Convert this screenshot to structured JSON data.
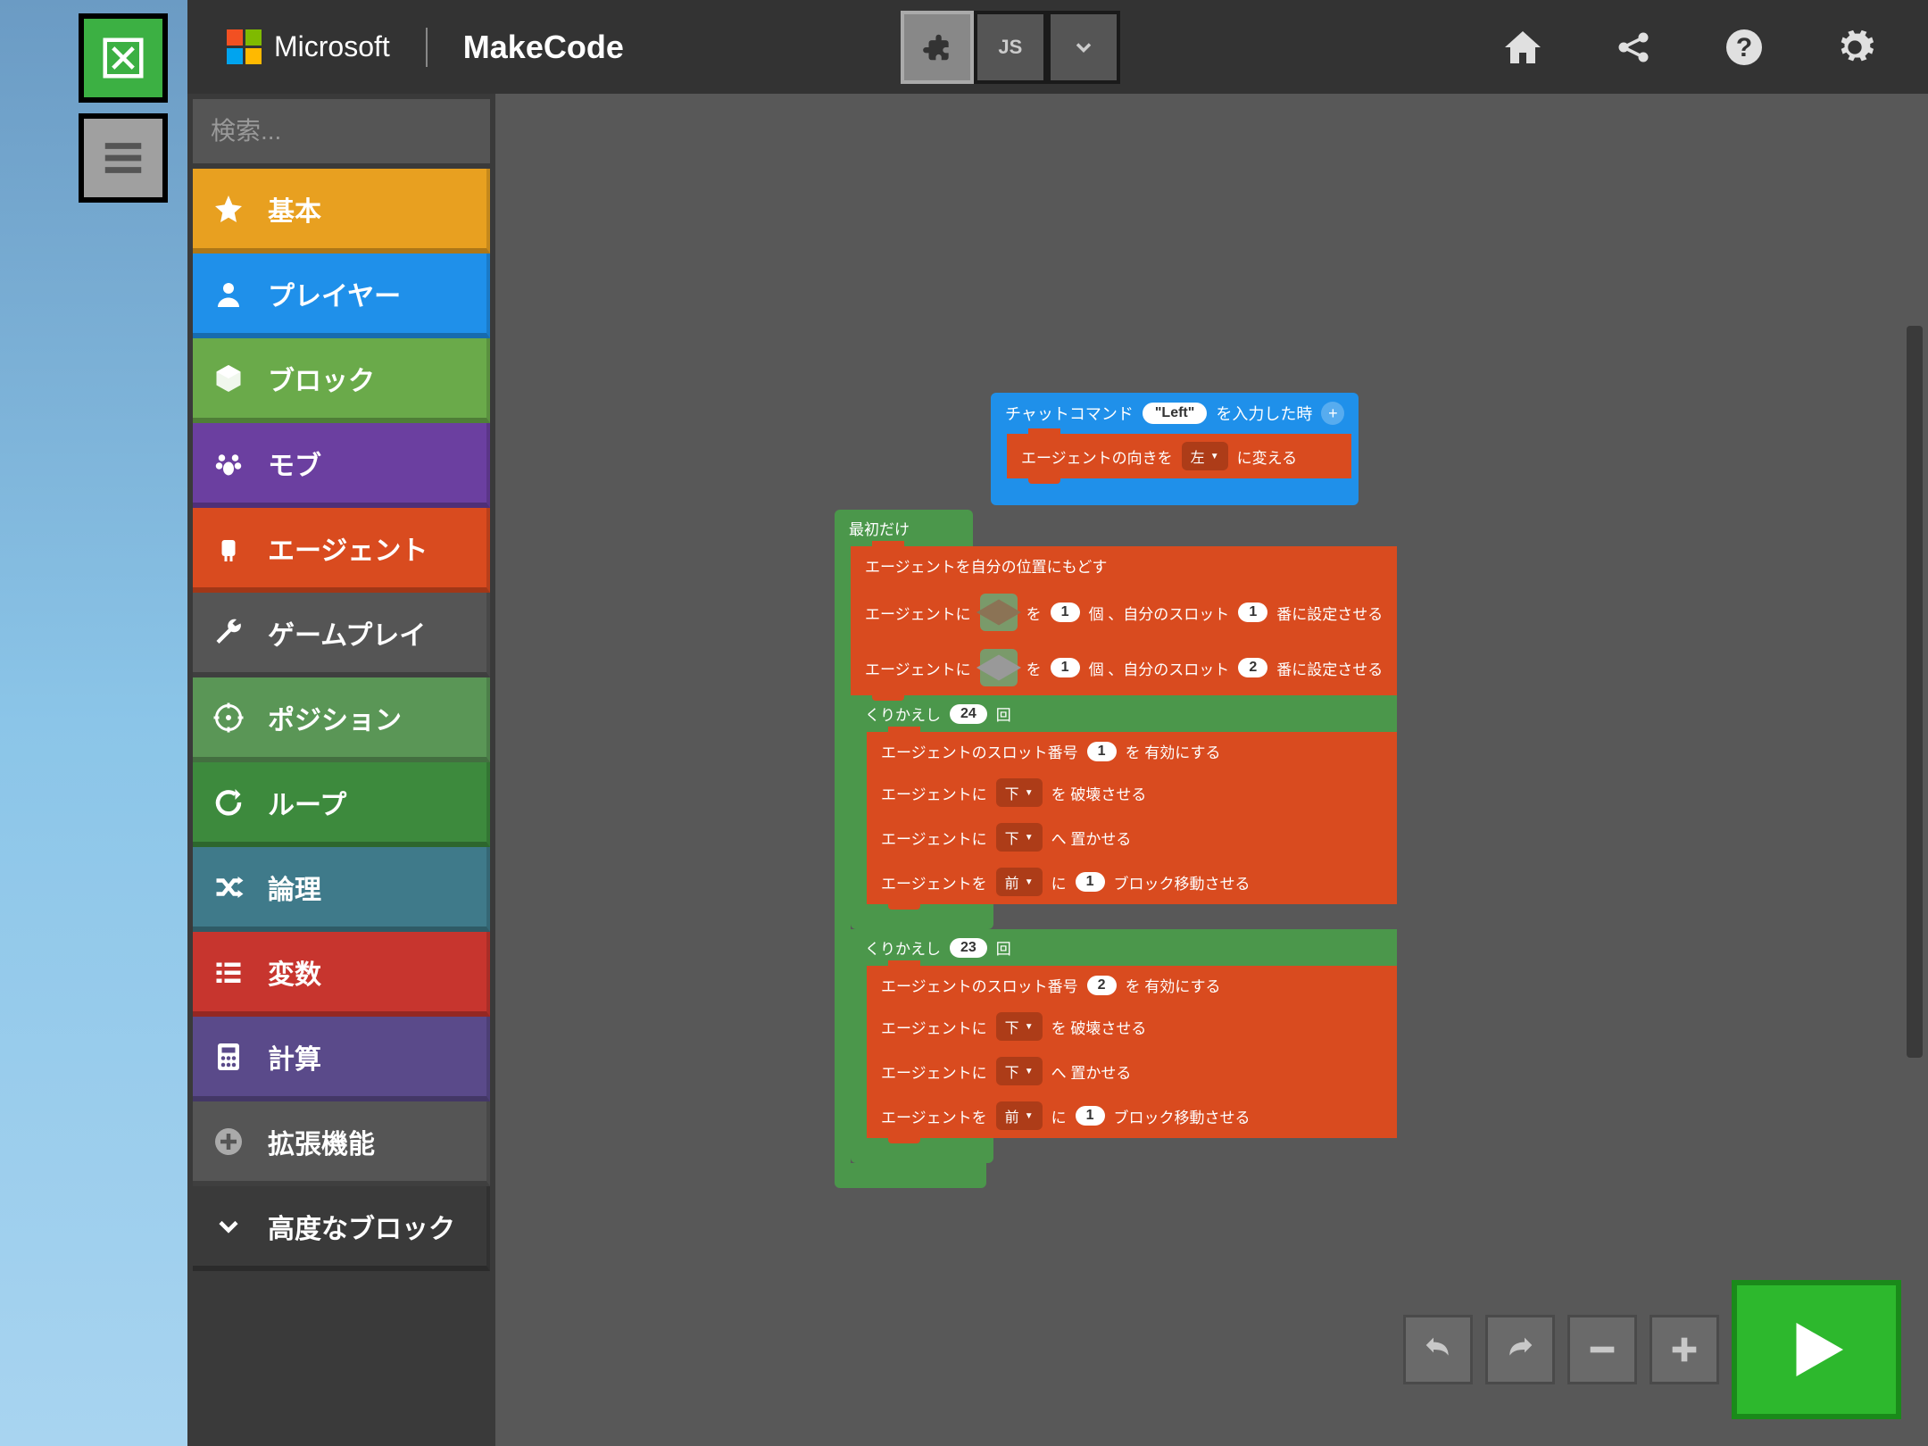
{
  "header": {
    "microsoft": "Microsoft",
    "makecode": "MakeCode",
    "js_label": "JS",
    "ms_colors": [
      "#f25022",
      "#7fba00",
      "#00a4ef",
      "#ffb900"
    ]
  },
  "search": {
    "placeholder": "検索..."
  },
  "categories": [
    {
      "label": "基本",
      "color": "#e8a020",
      "icon": "star"
    },
    {
      "label": "プレイヤー",
      "color": "#1f90ea",
      "icon": "user"
    },
    {
      "label": "ブロック",
      "color": "#6aaa4a",
      "icon": "cube"
    },
    {
      "label": "モブ",
      "color": "#6b3fa0",
      "icon": "paw"
    },
    {
      "label": "エージェント",
      "color": "#d94b1f",
      "icon": "robot"
    },
    {
      "label": "ゲームプレイ",
      "color": "#555555",
      "icon": "wrench"
    },
    {
      "label": "ポジション",
      "color": "#5a9656",
      "icon": "target"
    },
    {
      "label": "ループ",
      "color": "#3d8a3d",
      "icon": "loop"
    },
    {
      "label": "論理",
      "color": "#3f7a8a",
      "icon": "shuffle"
    },
    {
      "label": "変数",
      "color": "#c7352e",
      "icon": "list"
    },
    {
      "label": "計算",
      "color": "#5a4a8a",
      "icon": "calc"
    },
    {
      "label": "拡張機能",
      "color": "#555555",
      "icon": "plus"
    },
    {
      "label": "高度なブロック",
      "color": "#3a3a3a",
      "icon": "chevron"
    }
  ],
  "stack1": {
    "hat_pre": "チャットコマンド",
    "hat_cmd": "\"Left\"",
    "hat_post": "を入力した時",
    "row1_a": "エージェントの向きを",
    "row1_dir": "左",
    "row1_b": "に変える"
  },
  "stack2": {
    "hat": "最初だけ",
    "r1": "エージェントを自分の位置にもどす",
    "r2_a": "エージェントに",
    "r2_b": "を",
    "r2_n1": "1",
    "r2_c": "個 、自分のスロット",
    "r2_n2": "1",
    "r2_d": "番に設定させる",
    "r3_a": "エージェントに",
    "r3_b": "を",
    "r3_n1": "1",
    "r3_c": "個 、自分のスロット",
    "r3_n2": "2",
    "r3_d": "番に設定させる",
    "loop1_a": "くりかえし",
    "loop1_n": "24",
    "loop1_b": "回",
    "l1r1_a": "エージェントのスロット番号",
    "l1r1_n": "1",
    "l1r1_b": "を 有効にする",
    "l1r2_a": "エージェントに",
    "l1r2_dir": "下",
    "l1r2_b": "を 破壊させる",
    "l1r3_a": "エージェントに",
    "l1r3_dir": "下",
    "l1r3_b": "へ 置かせる",
    "l1r4_a": "エージェントを",
    "l1r4_dir": "前",
    "l1r4_b": "に",
    "l1r4_n": "1",
    "l1r4_c": "ブロック移動させる",
    "loop2_a": "くりかえし",
    "loop2_n": "23",
    "loop2_b": "回",
    "l2r1_a": "エージェントのスロット番号",
    "l2r1_n": "2",
    "l2r1_b": "を 有効にする",
    "l2r2_a": "エージェントに",
    "l2r2_dir": "下",
    "l2r2_b": "を 破壊させる",
    "l2r3_a": "エージェントに",
    "l2r3_dir": "下",
    "l2r3_b": "へ 置かせる",
    "l2r4_a": "エージェントを",
    "l2r4_dir": "前",
    "l2r4_b": "に",
    "l2r4_n": "1",
    "l2r4_c": "ブロック移動させる"
  }
}
